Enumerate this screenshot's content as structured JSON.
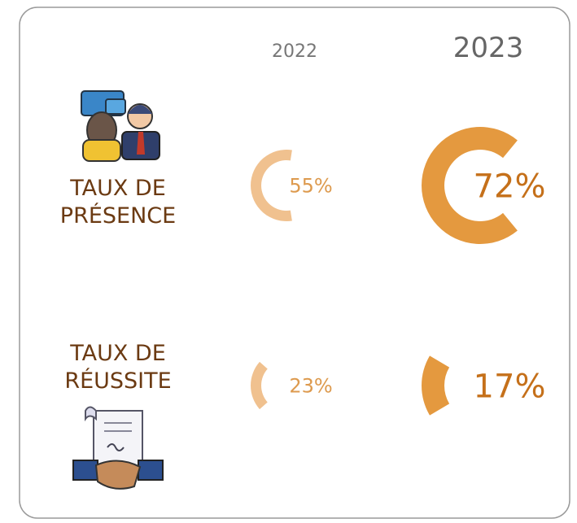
{
  "chart_data": {
    "type": "radial-arc",
    "categories": [
      "TAUX DE PRÉSENCE",
      "TAUX DE RÉUSSITE"
    ],
    "series": [
      {
        "name": "2022",
        "color": "#f0c18f",
        "values": [
          55,
          23
        ],
        "value_labels": [
          "55%",
          "23%"
        ]
      },
      {
        "name": "2023",
        "color": "#e4993f",
        "values": [
          72,
          17
        ],
        "value_labels": [
          "72%",
          "17%"
        ]
      }
    ],
    "full_scale": 100
  }
}
